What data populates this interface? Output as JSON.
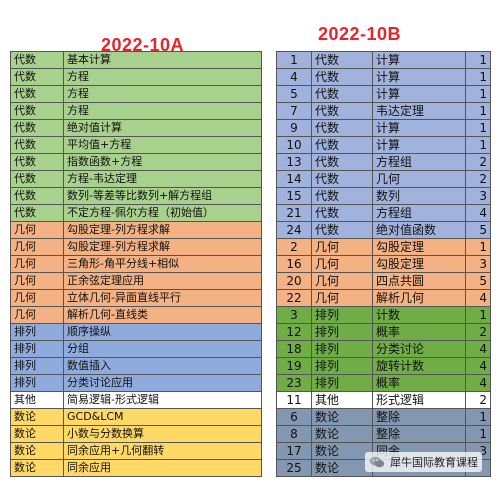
{
  "colors": {
    "green": "#a9d18e",
    "orange": "#f4b183",
    "blue": "#8faadc",
    "white": "#ffffff",
    "yellow": "#ffd966",
    "purple_b": "#a1b2dd",
    "dgreen": "#70ad47",
    "slate": "#8497b0",
    "title": "#e8232b"
  },
  "left": {
    "title": "2022-10A",
    "rows": [
      {
        "cat": "代数",
        "topic": "基本计算",
        "color": "green"
      },
      {
        "cat": "代数",
        "topic": "方程",
        "color": "green"
      },
      {
        "cat": "代数",
        "topic": "方程",
        "color": "green"
      },
      {
        "cat": "代数",
        "topic": "方程",
        "color": "green"
      },
      {
        "cat": "代数",
        "topic": "绝对值计算",
        "color": "green"
      },
      {
        "cat": "代数",
        "topic": "平均值+方程",
        "color": "green"
      },
      {
        "cat": "代数",
        "topic": "指数函数+方程",
        "color": "green"
      },
      {
        "cat": "代数",
        "topic": "方程-韦达定理",
        "color": "green"
      },
      {
        "cat": "代数",
        "topic": "数列-等差等比数列+解方程组",
        "color": "green"
      },
      {
        "cat": "代数",
        "topic": "不定方程-佩尔方程（初始值）",
        "color": "green"
      },
      {
        "cat": "几何",
        "topic": "勾股定理-列方程求解",
        "color": "orange"
      },
      {
        "cat": "几何",
        "topic": "勾股定理-列方程求解",
        "color": "orange"
      },
      {
        "cat": "几何",
        "topic": "三角形-角平分线+相似",
        "color": "orange"
      },
      {
        "cat": "几何",
        "topic": "正余弦定理应用",
        "color": "orange"
      },
      {
        "cat": "几何",
        "topic": "立体几何-异面直线平行",
        "color": "orange"
      },
      {
        "cat": "几何",
        "topic": "解析几何-直线类",
        "color": "orange"
      },
      {
        "cat": "排列",
        "topic": "顺序操纵",
        "color": "blue"
      },
      {
        "cat": "排列",
        "topic": "分组",
        "color": "blue"
      },
      {
        "cat": "排列",
        "topic": "数值插入",
        "color": "blue"
      },
      {
        "cat": "排列",
        "topic": "分类讨论应用",
        "color": "blue"
      },
      {
        "cat": "其他",
        "topic": "简易逻辑-形式逻辑",
        "color": "white"
      },
      {
        "cat": "数论",
        "topic": "GCD&LCM",
        "color": "yellow"
      },
      {
        "cat": "数论",
        "topic": "小数与分数换算",
        "color": "yellow"
      },
      {
        "cat": "数论",
        "topic": "同余应用+几何翻转",
        "color": "yellow"
      },
      {
        "cat": "数论",
        "topic": "同余应用",
        "color": "yellow"
      }
    ]
  },
  "right": {
    "title": "2022-10B",
    "rows": [
      {
        "no": "1",
        "cat": "代数",
        "topic": "计算",
        "level": "1",
        "color": "purple_b"
      },
      {
        "no": "4",
        "cat": "代数",
        "topic": "计算",
        "level": "1",
        "color": "purple_b"
      },
      {
        "no": "5",
        "cat": "代数",
        "topic": "计算",
        "level": "1",
        "color": "purple_b"
      },
      {
        "no": "7",
        "cat": "代数",
        "topic": "韦达定理",
        "level": "1",
        "color": "purple_b"
      },
      {
        "no": "9",
        "cat": "代数",
        "topic": "计算",
        "level": "1",
        "color": "purple_b"
      },
      {
        "no": "10",
        "cat": "代数",
        "topic": "计算",
        "level": "1",
        "color": "purple_b"
      },
      {
        "no": "13",
        "cat": "代数",
        "topic": "方程组",
        "level": "2",
        "color": "purple_b"
      },
      {
        "no": "14",
        "cat": "代数",
        "topic": "几何",
        "level": "2",
        "color": "purple_b"
      },
      {
        "no": "15",
        "cat": "代数",
        "topic": "数列",
        "level": "3",
        "color": "purple_b"
      },
      {
        "no": "21",
        "cat": "代数",
        "topic": "方程组",
        "level": "4",
        "color": "purple_b"
      },
      {
        "no": "24",
        "cat": "代数",
        "topic": "绝对值函数",
        "level": "5",
        "color": "purple_b"
      },
      {
        "no": "2",
        "cat": "几何",
        "topic": "勾股定理",
        "level": "1",
        "color": "orange"
      },
      {
        "no": "16",
        "cat": "几何",
        "topic": "勾股定理",
        "level": "3",
        "color": "orange"
      },
      {
        "no": "20",
        "cat": "几何",
        "topic": "四点共圆",
        "level": "5",
        "color": "orange"
      },
      {
        "no": "22",
        "cat": "几何",
        "topic": "解析几何",
        "level": "4",
        "color": "orange"
      },
      {
        "no": "3",
        "cat": "排列",
        "topic": "计数",
        "level": "1",
        "color": "dgreen"
      },
      {
        "no": "12",
        "cat": "排列",
        "topic": "概率",
        "level": "2",
        "color": "dgreen"
      },
      {
        "no": "18",
        "cat": "排列",
        "topic": "分类讨论",
        "level": "4",
        "color": "dgreen"
      },
      {
        "no": "19",
        "cat": "排列",
        "topic": "旋转计数",
        "level": "4",
        "color": "dgreen"
      },
      {
        "no": "23",
        "cat": "排列",
        "topic": "概率",
        "level": "4",
        "color": "dgreen"
      },
      {
        "no": "11",
        "cat": "其他",
        "topic": "形式逻辑",
        "level": "2",
        "color": "white"
      },
      {
        "no": "6",
        "cat": "数论",
        "topic": "整除",
        "level": "1",
        "color": "slate"
      },
      {
        "no": "8",
        "cat": "数论",
        "topic": "整除",
        "level": "1",
        "color": "slate"
      },
      {
        "no": "17",
        "cat": "数论",
        "topic": "同余",
        "level": "3",
        "color": "slate"
      },
      {
        "no": "25",
        "cat": "数论",
        "topic": "",
        "level": "",
        "color": "slate"
      }
    ]
  },
  "watermark": {
    "text": "犀牛国际教育课程",
    "icon": "wechat-icon"
  }
}
